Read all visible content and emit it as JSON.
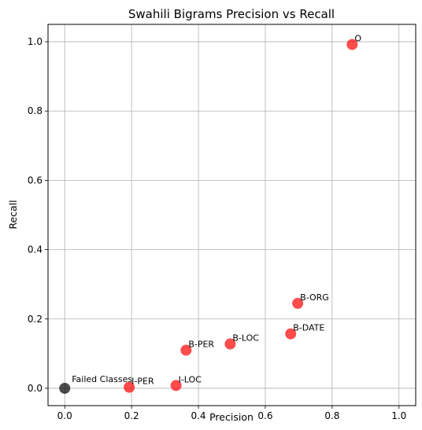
{
  "chart_data": {
    "type": "scatter",
    "title": "Swahili Bigrams Precision vs Recall",
    "xlabel": "Precision",
    "ylabel": "Recall",
    "xlim": [
      -0.05,
      1.05
    ],
    "ylim": [
      -0.05,
      1.05
    ],
    "xticks": [
      0.0,
      0.2,
      0.4,
      0.6,
      0.8,
      1.0
    ],
    "yticks": [
      0.0,
      0.2,
      0.4,
      0.6,
      0.8,
      1.0
    ],
    "xtick_labels": [
      "0.0",
      "0.2",
      "0.4",
      "0.6",
      "0.8",
      "1.0"
    ],
    "ytick_labels": [
      "0.0",
      "0.2",
      "0.4",
      "0.6",
      "0.8",
      "1.0"
    ],
    "grid": true,
    "series": [
      {
        "color": "#ff0000",
        "points": [
          {
            "label": "O",
            "x": 0.86,
            "y": 0.992
          },
          {
            "label": "B-ORG",
            "x": 0.697,
            "y": 0.245
          },
          {
            "label": "B-DATE",
            "x": 0.676,
            "y": 0.157
          },
          {
            "label": "B-LOC",
            "x": 0.495,
            "y": 0.128
          },
          {
            "label": "B-PER",
            "x": 0.363,
            "y": 0.11
          },
          {
            "label": "I-LOC",
            "x": 0.333,
            "y": 0.008
          },
          {
            "label": "I-PER",
            "x": 0.193,
            "y": 0.003
          }
        ]
      },
      {
        "color": "#000000",
        "points": [
          {
            "label": "Failed Classes",
            "x": 0.0,
            "y": 0.0
          }
        ]
      }
    ]
  }
}
